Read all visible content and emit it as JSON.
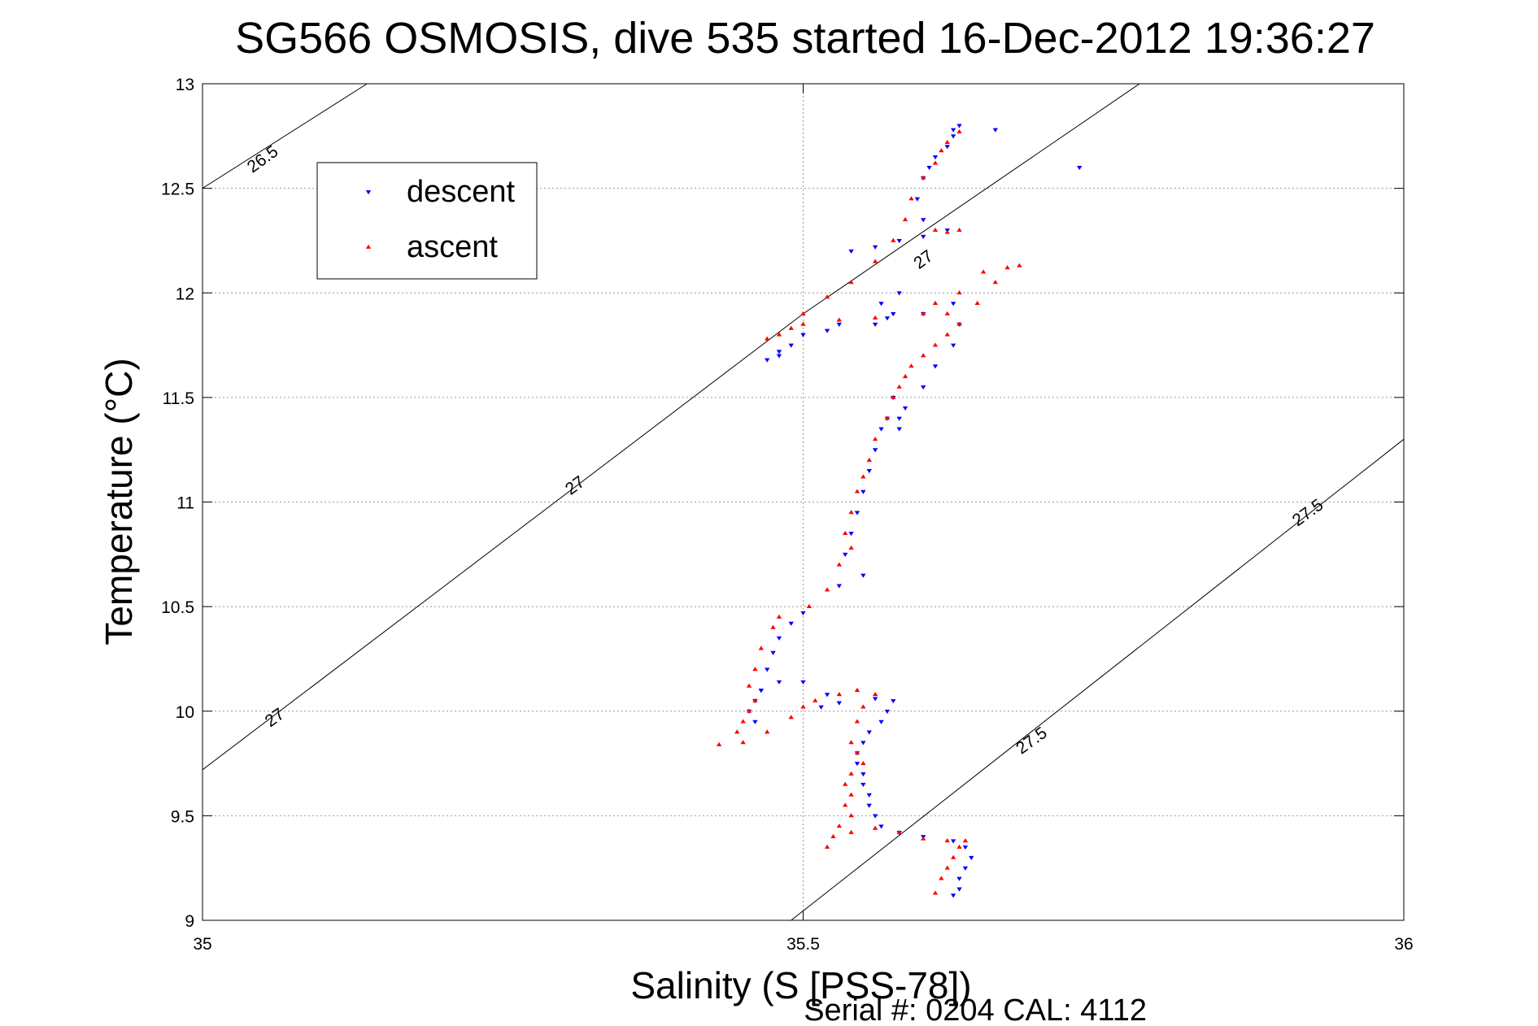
{
  "chart_data": {
    "type": "scatter",
    "title": "SG566 OSMOSIS, dive 535 started 16-Dec-2012 19:36:27",
    "xlabel": "Salinity (S [PSS-78])",
    "ylabel": "Temperature (°C)",
    "xlim": [
      35,
      36
    ],
    "ylim": [
      9,
      13
    ],
    "xticks": [
      35,
      35.5,
      36
    ],
    "xtick_labels": [
      "35",
      "35.5",
      "36"
    ],
    "yticks": [
      9,
      9.5,
      10,
      10.5,
      11,
      11.5,
      12,
      12.5,
      13
    ],
    "ytick_labels": [
      "9",
      "9.5",
      "10",
      "10.5",
      "11",
      "11.5",
      "12",
      "12.5",
      "13"
    ],
    "grid": true,
    "legend_position": "top-left",
    "footer": "Serial #: 0204  CAL: 4112",
    "density_contours": [
      {
        "label": "26.5",
        "points": [
          [
            35,
            12.5
          ],
          [
            35.137,
            13
          ]
        ]
      },
      {
        "label": "27",
        "points": [
          [
            35,
            9.72
          ],
          [
            35.5,
            11.9
          ],
          [
            35.78,
            13
          ]
        ]
      },
      {
        "label": "27.5",
        "points": [
          [
            35.49,
            9
          ],
          [
            36,
            11.3
          ]
        ]
      }
    ],
    "contour_labels": [
      {
        "text": "26.5",
        "x": 35.05,
        "y": 12.64
      },
      {
        "text": "27",
        "x": 35.6,
        "y": 12.16
      },
      {
        "text": "27",
        "x": 35.31,
        "y": 11.08
      },
      {
        "text": "27",
        "x": 35.06,
        "y": 9.97
      },
      {
        "text": "27.5",
        "x": 35.92,
        "y": 10.95
      },
      {
        "text": "27.5",
        "x": 35.69,
        "y": 9.86
      }
    ],
    "series": [
      {
        "name": "descent",
        "color": "#0000ff",
        "marker": "triangle-down",
        "points": [
          [
            35.625,
            9.12
          ],
          [
            35.63,
            9.15
          ],
          [
            35.63,
            9.2
          ],
          [
            35.635,
            9.25
          ],
          [
            35.64,
            9.3
          ],
          [
            35.635,
            9.35
          ],
          [
            35.625,
            9.38
          ],
          [
            35.6,
            9.4
          ],
          [
            35.58,
            9.42
          ],
          [
            35.565,
            9.45
          ],
          [
            35.56,
            9.5
          ],
          [
            35.555,
            9.55
          ],
          [
            35.555,
            9.6
          ],
          [
            35.55,
            9.65
          ],
          [
            35.55,
            9.7
          ],
          [
            35.545,
            9.75
          ],
          [
            35.545,
            9.8
          ],
          [
            35.55,
            9.85
          ],
          [
            35.555,
            9.9
          ],
          [
            35.565,
            9.95
          ],
          [
            35.57,
            10.0
          ],
          [
            35.575,
            10.05
          ],
          [
            35.56,
            10.06
          ],
          [
            35.53,
            10.04
          ],
          [
            35.515,
            10.02
          ],
          [
            35.52,
            10.08
          ],
          [
            35.5,
            10.14
          ],
          [
            35.48,
            10.14
          ],
          [
            35.465,
            10.1
          ],
          [
            35.46,
            10.05
          ],
          [
            35.455,
            10.0
          ],
          [
            35.46,
            9.95
          ],
          [
            35.465,
            10.1
          ],
          [
            35.47,
            10.2
          ],
          [
            35.475,
            10.28
          ],
          [
            35.48,
            10.35
          ],
          [
            35.49,
            10.42
          ],
          [
            35.5,
            10.47
          ],
          [
            35.53,
            10.6
          ],
          [
            35.55,
            10.65
          ],
          [
            35.535,
            10.75
          ],
          [
            35.54,
            10.85
          ],
          [
            35.545,
            10.95
          ],
          [
            35.55,
            11.05
          ],
          [
            35.555,
            11.15
          ],
          [
            35.56,
            11.25
          ],
          [
            35.565,
            11.35
          ],
          [
            35.57,
            11.4
          ],
          [
            35.575,
            11.5
          ],
          [
            35.58,
            11.4
          ],
          [
            35.58,
            11.35
          ],
          [
            35.585,
            11.45
          ],
          [
            35.6,
            11.55
          ],
          [
            35.61,
            11.65
          ],
          [
            35.625,
            11.75
          ],
          [
            35.63,
            11.85
          ],
          [
            35.625,
            11.95
          ],
          [
            35.6,
            11.9
          ],
          [
            35.57,
            11.88
          ],
          [
            35.565,
            11.95
          ],
          [
            35.575,
            11.9
          ],
          [
            35.58,
            12.0
          ],
          [
            35.56,
            11.85
          ],
          [
            35.53,
            11.85
          ],
          [
            35.5,
            11.8
          ],
          [
            35.49,
            11.75
          ],
          [
            35.48,
            11.7
          ],
          [
            35.47,
            11.68
          ],
          [
            35.48,
            11.72
          ],
          [
            35.52,
            11.82
          ],
          [
            35.54,
            12.2
          ],
          [
            35.56,
            12.22
          ],
          [
            35.58,
            12.25
          ],
          [
            35.6,
            12.27
          ],
          [
            35.62,
            12.3
          ],
          [
            35.6,
            12.35
          ],
          [
            35.595,
            12.45
          ],
          [
            35.6,
            12.55
          ],
          [
            35.605,
            12.6
          ],
          [
            35.61,
            12.65
          ],
          [
            35.62,
            12.7
          ],
          [
            35.625,
            12.75
          ],
          [
            35.63,
            12.8
          ],
          [
            35.625,
            12.78
          ],
          [
            35.66,
            12.78
          ],
          [
            35.73,
            12.6
          ]
        ]
      },
      {
        "name": "ascent",
        "color": "#ff0000",
        "marker": "triangle-up",
        "points": [
          [
            35.61,
            9.13
          ],
          [
            35.615,
            9.2
          ],
          [
            35.62,
            9.25
          ],
          [
            35.625,
            9.3
          ],
          [
            35.63,
            9.35
          ],
          [
            35.635,
            9.38
          ],
          [
            35.62,
            9.38
          ],
          [
            35.6,
            9.39
          ],
          [
            35.58,
            9.42
          ],
          [
            35.56,
            9.44
          ],
          [
            35.54,
            9.42
          ],
          [
            35.525,
            9.4
          ],
          [
            35.52,
            9.35
          ],
          [
            35.53,
            9.45
          ],
          [
            35.54,
            9.5
          ],
          [
            35.535,
            9.55
          ],
          [
            35.54,
            9.6
          ],
          [
            35.535,
            9.65
          ],
          [
            35.54,
            9.7
          ],
          [
            35.55,
            9.75
          ],
          [
            35.545,
            9.8
          ],
          [
            35.54,
            9.85
          ],
          [
            35.545,
            9.95
          ],
          [
            35.55,
            10.02
          ],
          [
            35.56,
            10.08
          ],
          [
            35.545,
            10.1
          ],
          [
            35.53,
            10.08
          ],
          [
            35.51,
            10.05
          ],
          [
            35.5,
            10.02
          ],
          [
            35.49,
            9.97
          ],
          [
            35.47,
            9.9
          ],
          [
            35.45,
            9.85
          ],
          [
            35.43,
            9.84
          ],
          [
            35.445,
            9.9
          ],
          [
            35.45,
            9.95
          ],
          [
            35.455,
            10.0
          ],
          [
            35.46,
            10.05
          ],
          [
            35.455,
            10.12
          ],
          [
            35.46,
            10.2
          ],
          [
            35.465,
            10.3
          ],
          [
            35.475,
            10.4
          ],
          [
            35.48,
            10.45
          ],
          [
            35.505,
            10.5
          ],
          [
            35.52,
            10.58
          ],
          [
            35.53,
            10.7
          ],
          [
            35.54,
            10.78
          ],
          [
            35.535,
            10.85
          ],
          [
            35.54,
            10.95
          ],
          [
            35.545,
            11.05
          ],
          [
            35.55,
            11.12
          ],
          [
            35.555,
            11.2
          ],
          [
            35.56,
            11.3
          ],
          [
            35.57,
            11.4
          ],
          [
            35.575,
            11.5
          ],
          [
            35.58,
            11.55
          ],
          [
            35.585,
            11.6
          ],
          [
            35.59,
            11.65
          ],
          [
            35.6,
            11.7
          ],
          [
            35.61,
            11.75
          ],
          [
            35.62,
            11.8
          ],
          [
            35.63,
            11.85
          ],
          [
            35.645,
            11.95
          ],
          [
            35.66,
            12.05
          ],
          [
            35.67,
            12.12
          ],
          [
            35.68,
            12.13
          ],
          [
            35.65,
            12.1
          ],
          [
            35.63,
            12.0
          ],
          [
            35.61,
            11.95
          ],
          [
            35.6,
            11.9
          ],
          [
            35.62,
            11.9
          ],
          [
            35.56,
            11.88
          ],
          [
            35.53,
            11.87
          ],
          [
            35.5,
            11.85
          ],
          [
            35.48,
            11.8
          ],
          [
            35.47,
            11.78
          ],
          [
            35.49,
            11.83
          ],
          [
            35.5,
            11.9
          ],
          [
            35.52,
            11.98
          ],
          [
            35.54,
            12.05
          ],
          [
            35.56,
            12.15
          ],
          [
            35.575,
            12.25
          ],
          [
            35.585,
            12.35
          ],
          [
            35.59,
            12.45
          ],
          [
            35.6,
            12.55
          ],
          [
            35.61,
            12.62
          ],
          [
            35.615,
            12.68
          ],
          [
            35.62,
            12.72
          ],
          [
            35.63,
            12.77
          ],
          [
            35.61,
            12.3
          ],
          [
            35.62,
            12.29
          ],
          [
            35.63,
            12.3
          ]
        ]
      }
    ]
  }
}
